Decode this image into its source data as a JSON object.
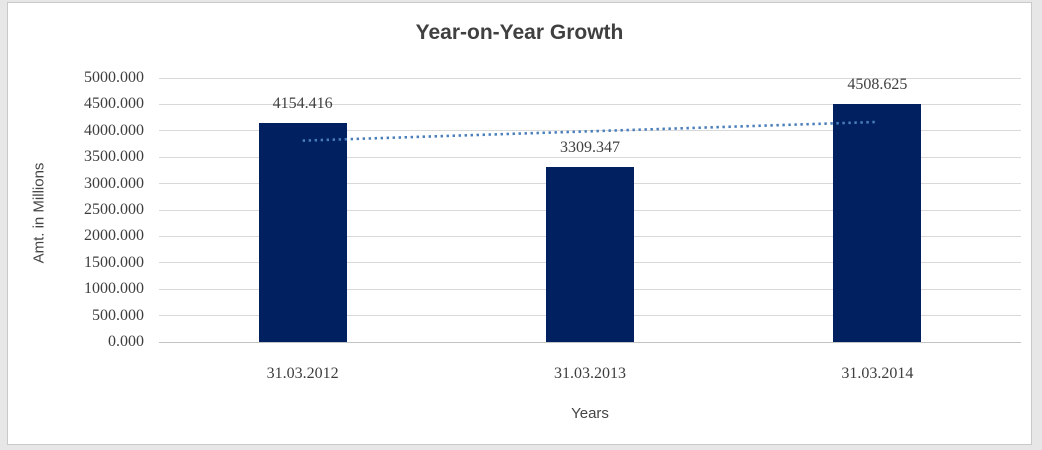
{
  "chart_data": {
    "type": "bar",
    "title": "Year-on-Year Growth",
    "categories": [
      "31.03.2012",
      "31.03.2013",
      "31.03.2014"
    ],
    "values": [
      4154.416,
      3309.347,
      4508.625
    ],
    "data_labels": [
      "4154.416",
      "3309.347",
      "4508.625"
    ],
    "xlabel": "Years",
    "ylabel": "Amt. in Millions",
    "ylim": [
      0,
      5000
    ],
    "ytick_step": 500,
    "ytick_labels": [
      "0.000",
      "500.000",
      "1000.000",
      "1500.000",
      "2000.000",
      "2500.000",
      "3000.000",
      "3500.000",
      "4000.000",
      "4500.000",
      "5000.000"
    ],
    "grid": true,
    "legend": "none",
    "bar_color": "#002060",
    "trendline": {
      "type": "linear",
      "style": "dotted",
      "color": "#4a7ebb"
    },
    "colors": {
      "title_text": "#404040",
      "axis_text": "#3d3d3d",
      "gridline": "#d9d9d9",
      "panel_border": "#c9c9c9",
      "outer_background": "#e7e7e7",
      "panel_background": "#ffffff"
    }
  }
}
